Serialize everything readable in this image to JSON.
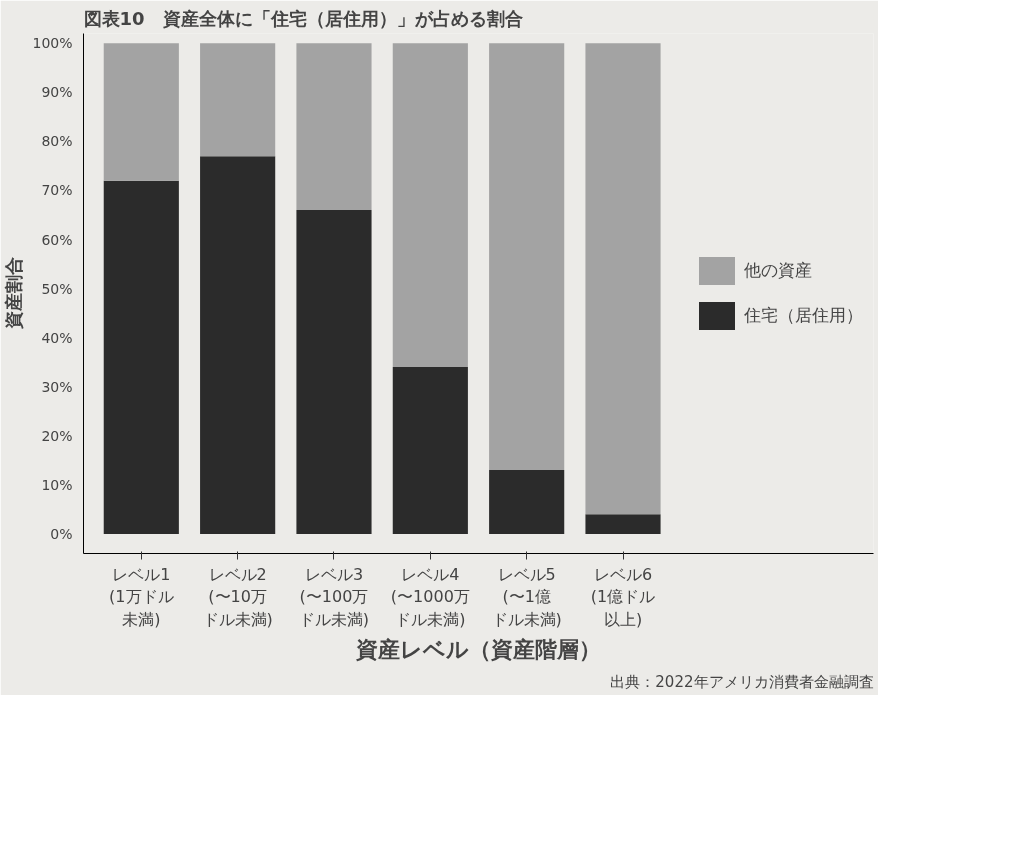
{
  "chart_data": {
    "type": "bar",
    "stacked": true,
    "title": "図表10　資産全体に「住宅（居住用）」が占める割合",
    "xlabel": "資産レベル（資産階層）",
    "ylabel": "資産割合",
    "categories": [
      "レベル1(1万ドル未満)",
      "レベル2(〜10万ドル未満)",
      "レベル3(〜100万ドル未満)",
      "レベル4(〜1000万ドル未満)",
      "レベル5(〜1億ドル未満)",
      "レベル6(1億ドル以上)"
    ],
    "series": [
      {
        "name": "住宅（居住用）",
        "color": "#2b2b2b",
        "values": [
          72,
          77,
          66,
          34,
          13,
          4
        ]
      },
      {
        "name": "他の資産",
        "color": "#a3a3a3",
        "values": [
          28,
          23,
          34,
          66,
          87,
          96
        ]
      }
    ],
    "ylim": [
      -4,
      102
    ],
    "yticks": [
      {
        "value": 0,
        "label": "0%"
      },
      {
        "value": 10,
        "label": "10%"
      },
      {
        "value": 20,
        "label": "20%"
      },
      {
        "value": 30,
        "label": "30%"
      },
      {
        "value": 40,
        "label": "40%"
      },
      {
        "value": 50,
        "label": "50%"
      },
      {
        "value": 60,
        "label": "60%"
      },
      {
        "value": 70,
        "label": "70%"
      },
      {
        "value": 80,
        "label": "80%"
      },
      {
        "value": 90,
        "label": "90%"
      },
      {
        "value": 100,
        "label": "100%"
      }
    ],
    "grid": false,
    "legend": "right",
    "annotations": [
      "出典：2022年アメリカ消費者金融調査"
    ]
  }
}
